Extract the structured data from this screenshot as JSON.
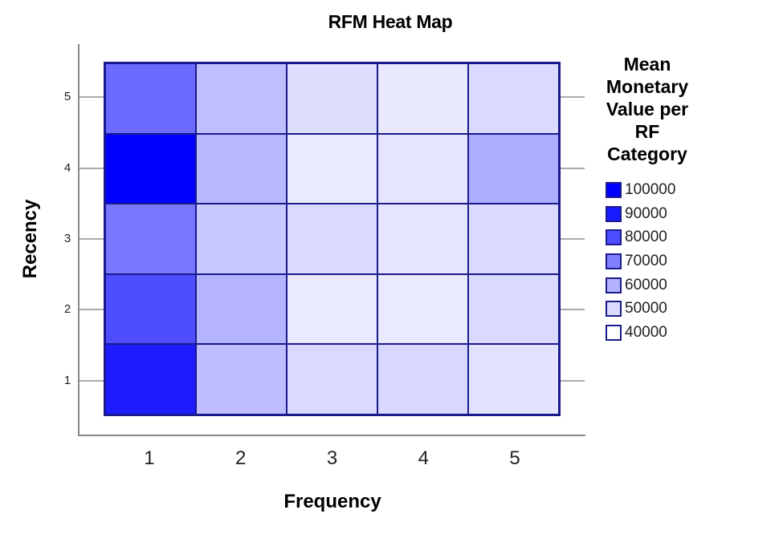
{
  "chart_data": {
    "type": "heatmap",
    "title": "RFM Heat Map",
    "xlabel": "Frequency",
    "ylabel": "Recency",
    "x_categories": [
      "1",
      "2",
      "3",
      "4",
      "5"
    ],
    "y_categories": [
      "1",
      "2",
      "3",
      "4",
      "5"
    ],
    "legend_title": "Mean Monetary Value per RF Category",
    "legend": [
      {
        "label": "100000",
        "color": "#0000ff"
      },
      {
        "label": "90000",
        "color": "#1a1aff"
      },
      {
        "label": "80000",
        "color": "#4d4dff"
      },
      {
        "label": "70000",
        "color": "#8080ff"
      },
      {
        "label": "60000",
        "color": "#b3b3ff"
      },
      {
        "label": "50000",
        "color": "#dadaff"
      },
      {
        "label": "40000",
        "color": "#ffffff"
      }
    ],
    "value_range": [
      40000,
      100000
    ],
    "rows_top_to_bottom": [
      {
        "recency": "5",
        "values": [
          75000,
          57000,
          48000,
          45000,
          49000
        ],
        "colors": [
          "#6b6bff",
          "#bfbfff",
          "#dedeff",
          "#e8e8ff",
          "#dadaff"
        ]
      },
      {
        "recency": "4",
        "values": [
          100000,
          59000,
          44000,
          46000,
          62000
        ],
        "colors": [
          "#0000ff",
          "#b8b8ff",
          "#ebebff",
          "#e5e5ff",
          "#adadff"
        ]
      },
      {
        "recency": "3",
        "values": [
          72000,
          55000,
          49000,
          46000,
          49000
        ],
        "colors": [
          "#7878ff",
          "#c8c8ff",
          "#dadaff",
          "#e5e5ff",
          "#dadaff"
        ]
      },
      {
        "recency": "2",
        "values": [
          82000,
          60000,
          44000,
          44000,
          49000
        ],
        "colors": [
          "#4e4eff",
          "#b5b5ff",
          "#eaeaff",
          "#eaeaff",
          "#dadaff"
        ]
      },
      {
        "recency": "1",
        "values": [
          93000,
          57000,
          49000,
          50000,
          47000
        ],
        "colors": [
          "#1c1cff",
          "#bebeff",
          "#dadaff",
          "#d7d7ff",
          "#e3e3ff"
        ]
      }
    ],
    "grid": false,
    "legend_position": "right"
  },
  "ui": {
    "title": "RFM Heat Map",
    "xlabel": "Frequency",
    "ylabel": "Recency",
    "legend_title": "Mean Monetary Value per RF Category",
    "xticks": [
      "1",
      "2",
      "3",
      "4",
      "5"
    ],
    "yticks_top_to_bottom": [
      "5",
      "4",
      "3",
      "2",
      "1"
    ]
  }
}
